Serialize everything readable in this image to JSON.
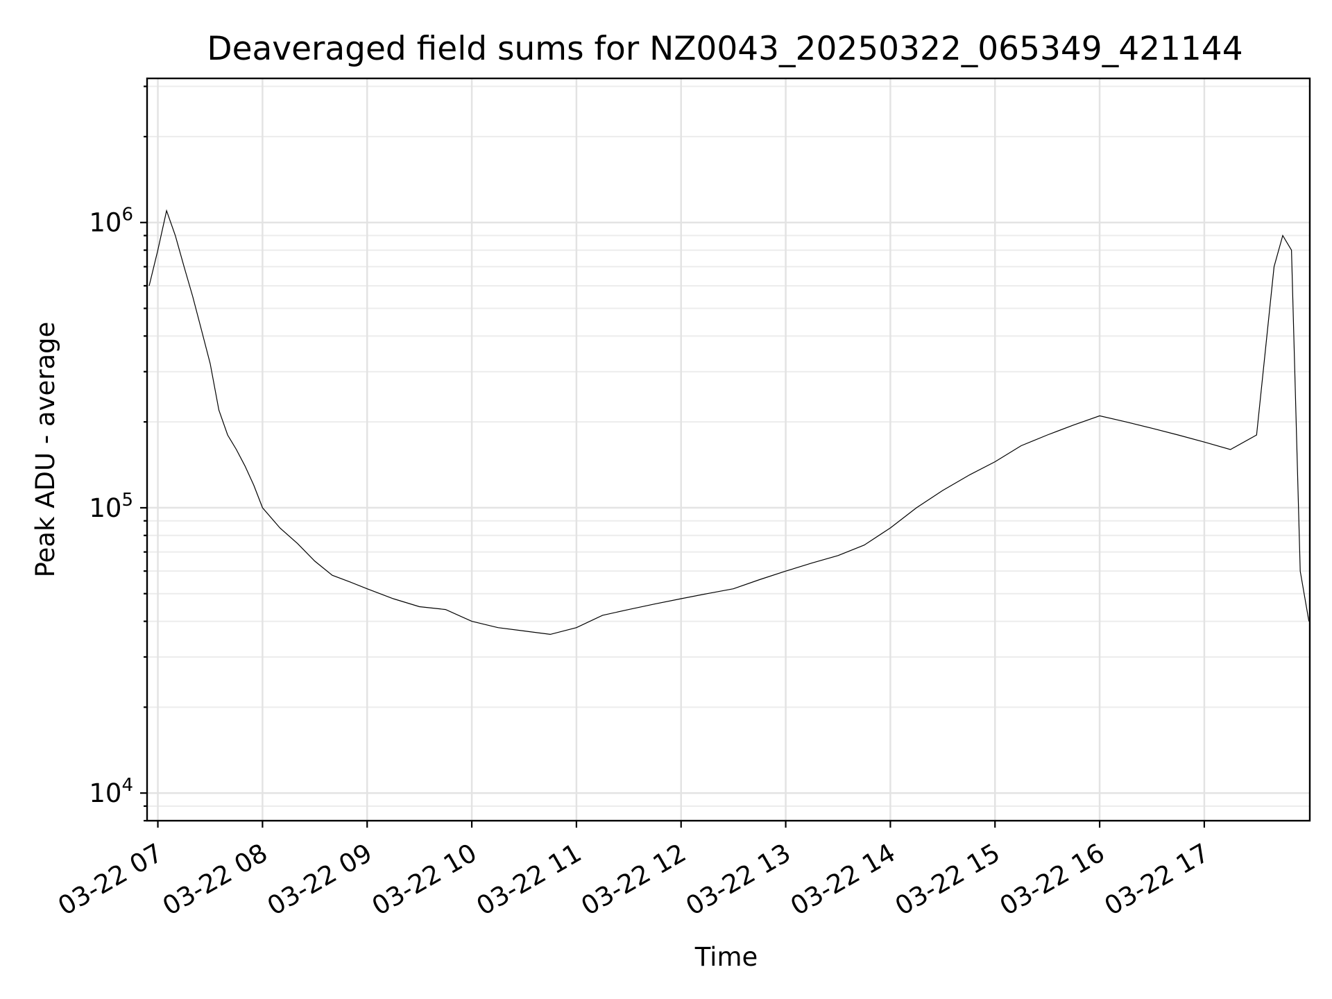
{
  "chart_data": {
    "type": "line",
    "title": "Deaveraged field sums for NZ0043_20250322_065349_421144",
    "xlabel": "Time",
    "ylabel": "Peak ADU - average",
    "yscale": "log",
    "ylim": [
      8000,
      3200000
    ],
    "xlim": [
      "2025-03-22 06:53:49",
      "2025-03-22 18:00:30"
    ],
    "grid": true,
    "x_ticks": [
      {
        "label": "03-22 07",
        "t": "2025-03-22 07:00"
      },
      {
        "label": "03-22 08",
        "t": "2025-03-22 08:00"
      },
      {
        "label": "03-22 09",
        "t": "2025-03-22 09:00"
      },
      {
        "label": "03-22 10",
        "t": "2025-03-22 10:00"
      },
      {
        "label": "03-22 11",
        "t": "2025-03-22 11:00"
      },
      {
        "label": "03-22 12",
        "t": "2025-03-22 12:00"
      },
      {
        "label": "03-22 13",
        "t": "2025-03-22 13:00"
      },
      {
        "label": "03-22 14",
        "t": "2025-03-22 14:00"
      },
      {
        "label": "03-22 15",
        "t": "2025-03-22 15:00"
      },
      {
        "label": "03-22 16",
        "t": "2025-03-22 16:00"
      },
      {
        "label": "03-22 17",
        "t": "2025-03-22 17:00"
      }
    ],
    "y_ticks": [
      {
        "label": "10",
        "exp": "4",
        "value": 10000
      },
      {
        "label": "10",
        "exp": "5",
        "value": 100000
      },
      {
        "label": "10",
        "exp": "6",
        "value": 1000000
      }
    ],
    "series": [
      {
        "color": "#000000",
        "x": [
          "2025-03-22 06:55",
          "2025-03-22 07:00",
          "2025-03-22 07:05",
          "2025-03-22 07:10",
          "2025-03-22 07:15",
          "2025-03-22 07:20",
          "2025-03-22 07:25",
          "2025-03-22 07:30",
          "2025-03-22 07:35",
          "2025-03-22 07:40",
          "2025-03-22 07:45",
          "2025-03-22 07:50",
          "2025-03-22 07:55",
          "2025-03-22 08:00",
          "2025-03-22 08:10",
          "2025-03-22 08:20",
          "2025-03-22 08:30",
          "2025-03-22 08:40",
          "2025-03-22 08:50",
          "2025-03-22 09:00",
          "2025-03-22 09:15",
          "2025-03-22 09:30",
          "2025-03-22 09:45",
          "2025-03-22 10:00",
          "2025-03-22 10:15",
          "2025-03-22 10:30",
          "2025-03-22 10:45",
          "2025-03-22 11:00",
          "2025-03-22 11:15",
          "2025-03-22 11:30",
          "2025-03-22 11:45",
          "2025-03-22 12:00",
          "2025-03-22 12:15",
          "2025-03-22 12:30",
          "2025-03-22 12:45",
          "2025-03-22 13:00",
          "2025-03-22 13:15",
          "2025-03-22 13:30",
          "2025-03-22 13:45",
          "2025-03-22 14:00",
          "2025-03-22 14:15",
          "2025-03-22 14:30",
          "2025-03-22 14:45",
          "2025-03-22 15:00",
          "2025-03-22 15:15",
          "2025-03-22 15:30",
          "2025-03-22 15:45",
          "2025-03-22 16:00",
          "2025-03-22 16:15",
          "2025-03-22 16:30",
          "2025-03-22 16:45",
          "2025-03-22 17:00",
          "2025-03-22 17:15",
          "2025-03-22 17:30",
          "2025-03-22 17:40",
          "2025-03-22 17:45",
          "2025-03-22 17:50",
          "2025-03-22 17:55",
          "2025-03-22 18:00"
        ],
        "values": [
          600000,
          800000,
          1100000,
          900000,
          700000,
          550000,
          420000,
          320000,
          220000,
          180000,
          160000,
          140000,
          120000,
          100000,
          85000,
          75000,
          65000,
          58000,
          55000,
          52000,
          48000,
          45000,
          44000,
          40000,
          38000,
          37000,
          36000,
          38000,
          42000,
          44000,
          46000,
          48000,
          50000,
          52000,
          56000,
          60000,
          64000,
          68000,
          74000,
          85000,
          100000,
          115000,
          130000,
          145000,
          165000,
          180000,
          195000,
          210000,
          200000,
          190000,
          180000,
          170000,
          160000,
          180000,
          700000,
          900000,
          800000,
          60000,
          40000
        ]
      }
    ]
  }
}
